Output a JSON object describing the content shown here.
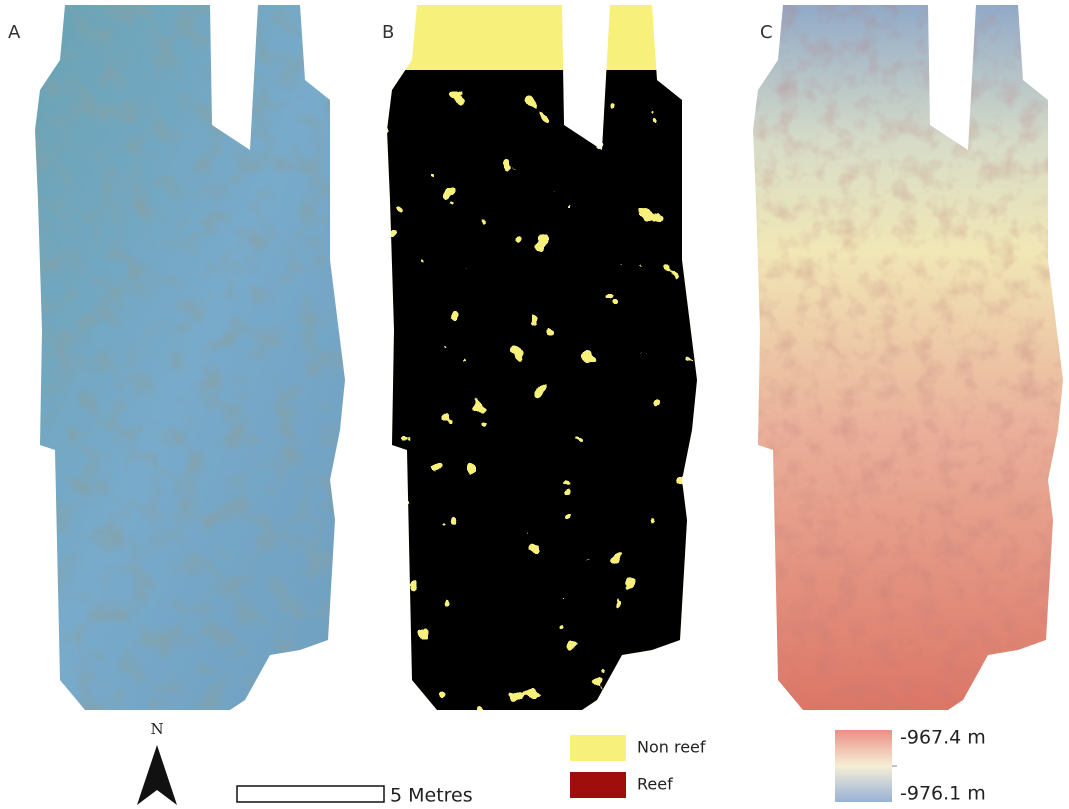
{
  "panels": [
    {
      "label": "A"
    },
    {
      "label": "B"
    },
    {
      "label": "C"
    }
  ],
  "north_arrow": {
    "label": "N"
  },
  "scale_bar": {
    "label": "5 Metres"
  },
  "legend": {
    "items": [
      {
        "label": "Non reef",
        "color": "#f7f07a"
      },
      {
        "label": "Reef",
        "color": "#a00d0d"
      }
    ]
  },
  "color_scale": {
    "max_label": "-967.4 m",
    "min_label": "-976.1 m"
  }
}
